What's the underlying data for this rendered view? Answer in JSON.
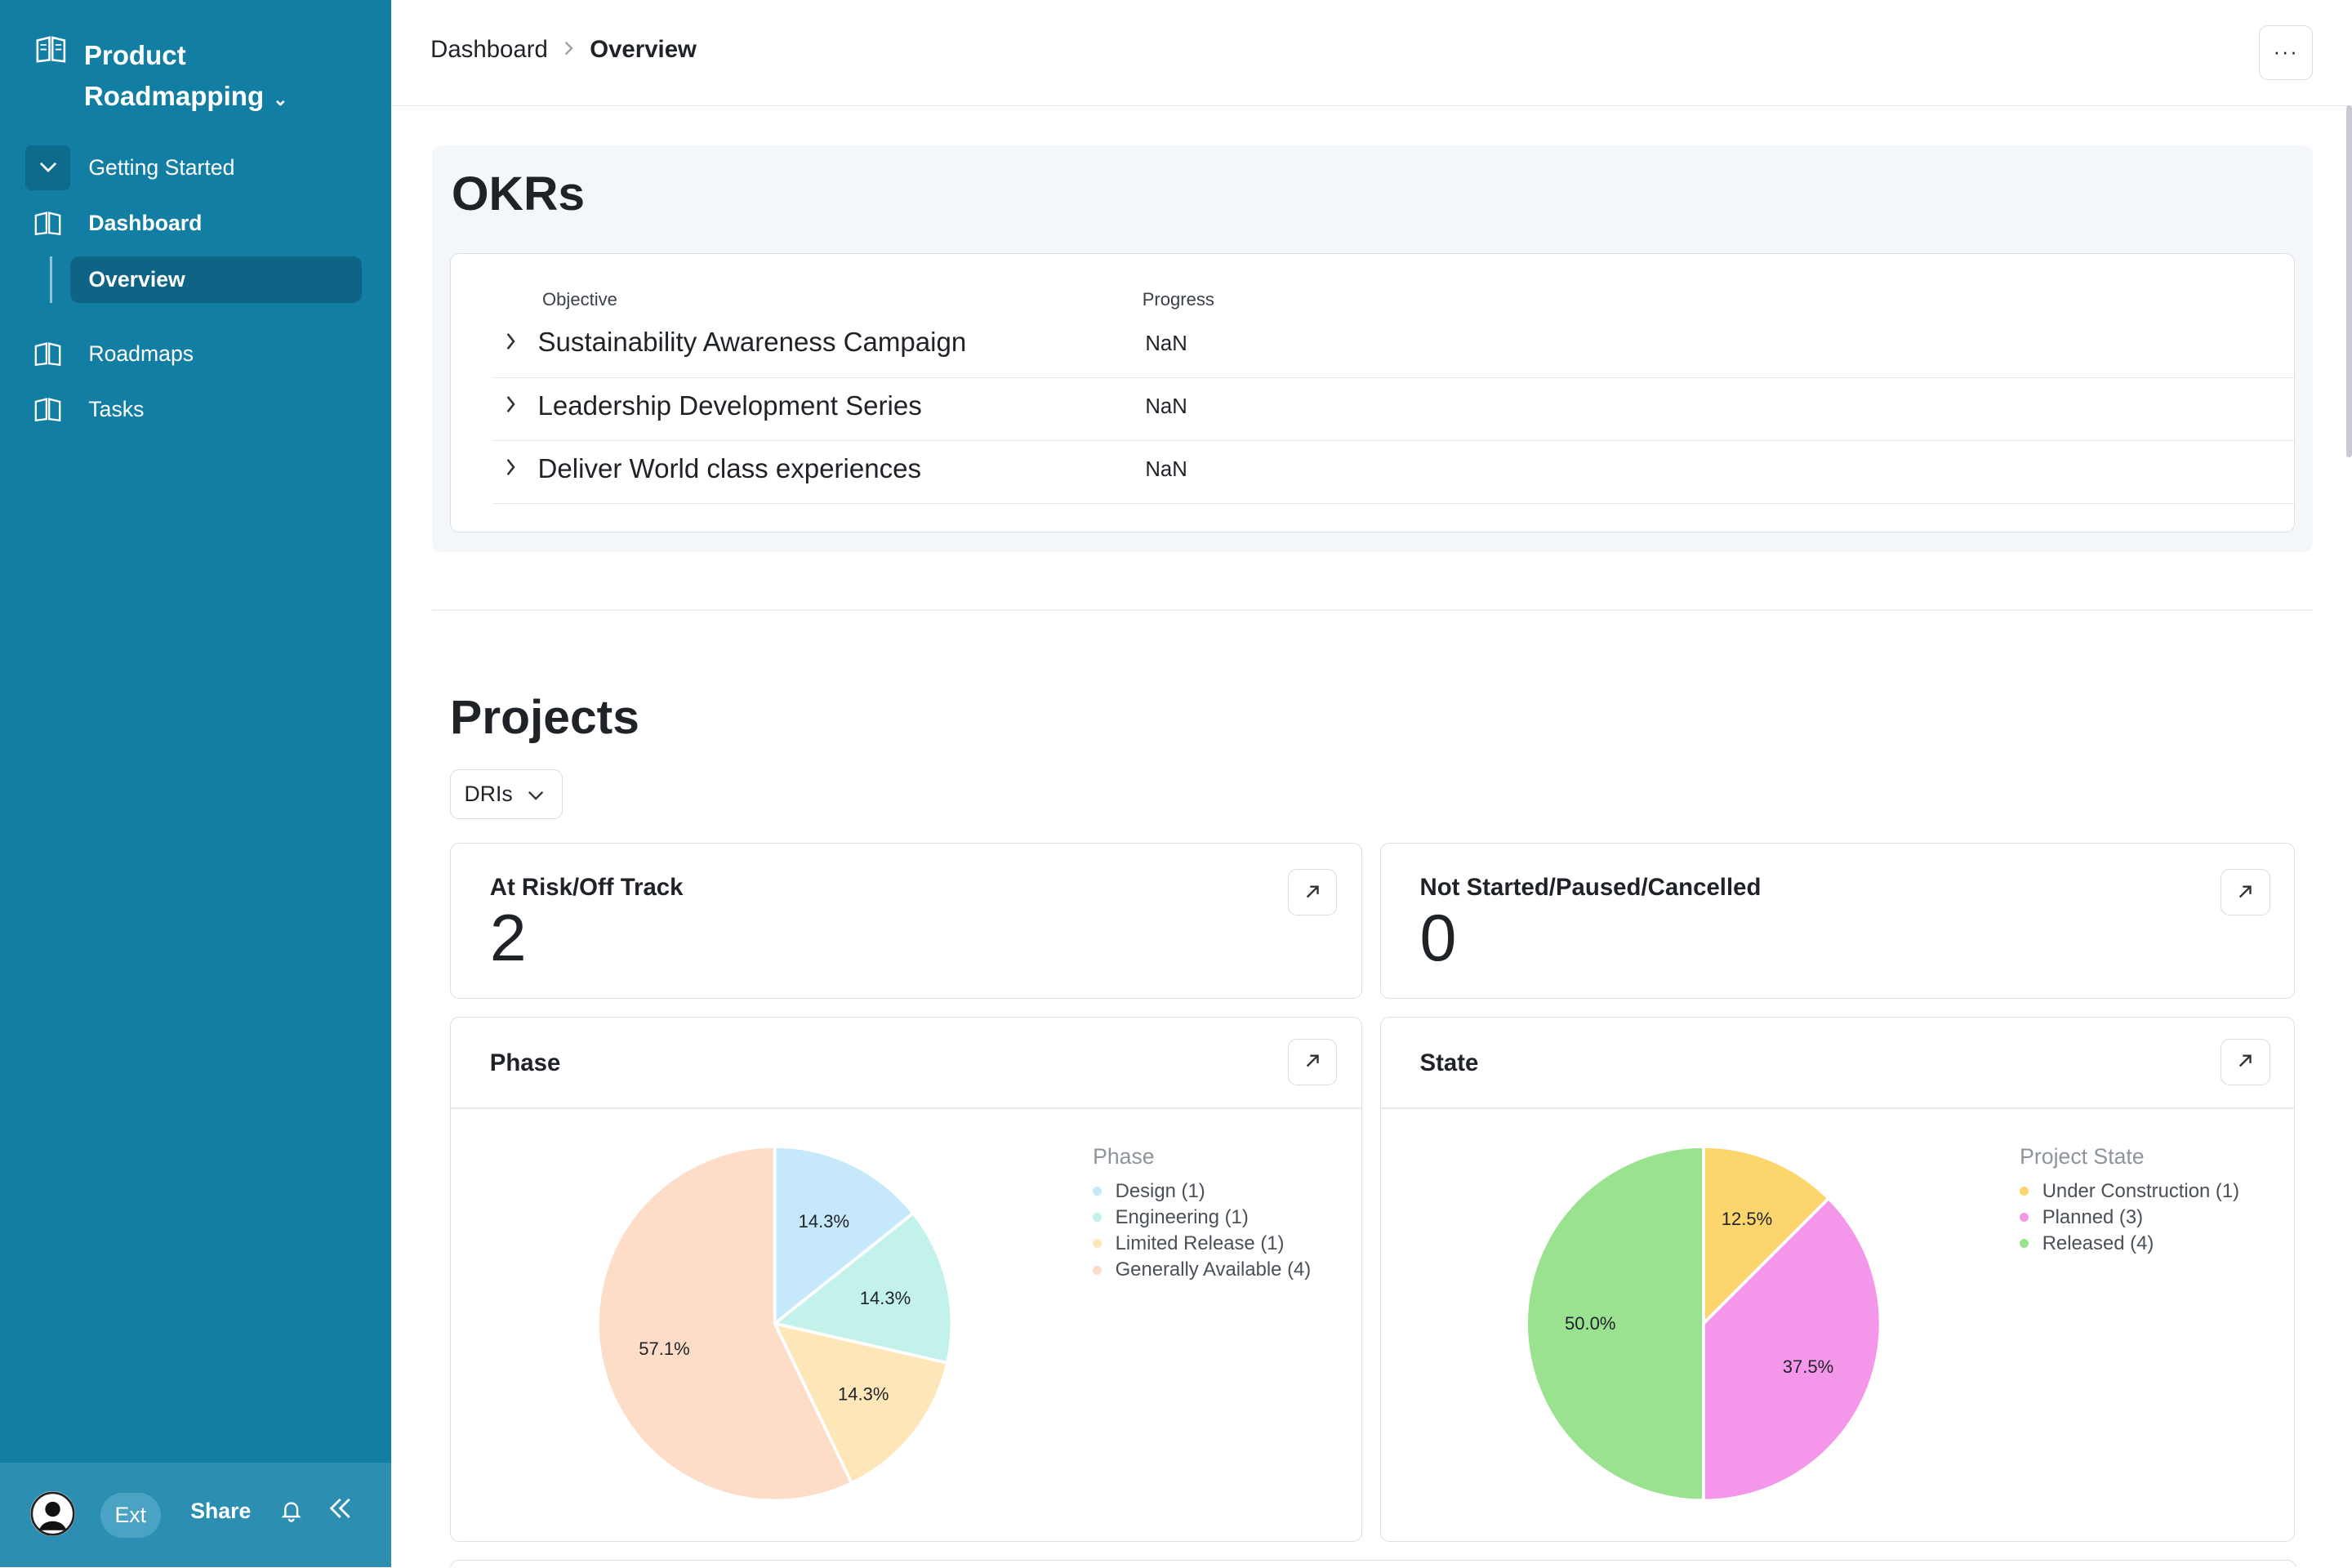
{
  "sidebar": {
    "app_title": "Product Roadmapping",
    "items": [
      {
        "label": "Getting Started"
      },
      {
        "label": "Dashboard"
      },
      {
        "label": "Overview"
      },
      {
        "label": "Roadmaps"
      },
      {
        "label": "Tasks"
      }
    ],
    "footer": {
      "ext_label": "Ext",
      "share_label": "Share"
    }
  },
  "header": {
    "breadcrumb": [
      "Dashboard",
      "Overview"
    ],
    "more_label": "···"
  },
  "okrs": {
    "title": "OKRs",
    "columns": {
      "objective": "Objective",
      "progress": "Progress"
    },
    "rows": [
      {
        "objective": "Sustainability Awareness Campaign",
        "progress": "NaN"
      },
      {
        "objective": "Leadership Development Series",
        "progress": "NaN"
      },
      {
        "objective": "Deliver World class experiences",
        "progress": "NaN"
      }
    ]
  },
  "projects": {
    "title": "Projects",
    "filter_label": "DRIs",
    "stats": [
      {
        "label": "At Risk/Off Track",
        "value": "2"
      },
      {
        "label": "Not Started/Paused/Cancelled",
        "value": "0"
      }
    ]
  },
  "colors": {
    "sidebar": "#137ea3",
    "design": "#c5e9fb",
    "engineering": "#c2f2ea",
    "limited_release": "#fde7b8",
    "generally_available": "#fddcc8",
    "under_construction": "#fcd56d",
    "planned": "#f497ea",
    "released": "#9ae190"
  },
  "chart_data": [
    {
      "type": "pie",
      "title": "Phase",
      "legend_title": "Phase",
      "categories": [
        "Design",
        "Engineering",
        "Limited Release",
        "Generally Available"
      ],
      "values": [
        1,
        1,
        1,
        4
      ],
      "legend_labels": [
        "Design (1)",
        "Engineering (1)",
        "Limited Release (1)",
        "Generally Available (4)"
      ],
      "data_labels": [
        "14.3%",
        "14.3%",
        "14.3%",
        "57.1%"
      ],
      "colors": [
        "#c5e9fb",
        "#c2f2ea",
        "#fde7b8",
        "#fddcc8"
      ],
      "legend": "right"
    },
    {
      "type": "pie",
      "title": "State",
      "legend_title": "Project State",
      "categories": [
        "Under Construction",
        "Planned",
        "Released"
      ],
      "values": [
        1,
        3,
        4
      ],
      "legend_labels": [
        "Under Construction (1)",
        "Planned (3)",
        "Released (4)"
      ],
      "data_labels": [
        "12.5%",
        "37.5%",
        "50.0%"
      ],
      "colors": [
        "#fcd56d",
        "#f497ea",
        "#9ae190"
      ],
      "legend": "right"
    }
  ]
}
